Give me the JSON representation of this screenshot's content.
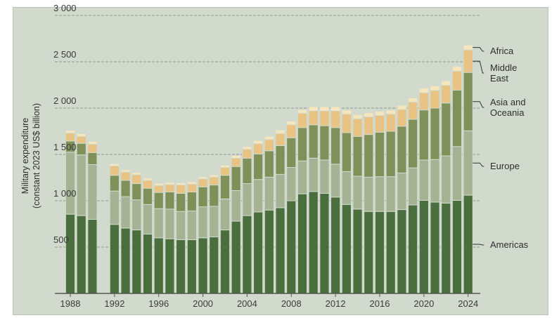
{
  "chart_data": {
    "type": "bar",
    "stacked": true,
    "ylabel_line1": "Military expenditure",
    "ylabel_line2": "(constant 2023 US$ billion)",
    "ylim": [
      0,
      3000
    ],
    "yticks": [
      500,
      1000,
      1500,
      2000,
      2500,
      3000
    ],
    "ytick_labels": [
      "500",
      "1 000",
      "1 500",
      "2 000",
      "2 500",
      "3 000"
    ],
    "xticks": [
      1988,
      1992,
      1996,
      2000,
      2004,
      2008,
      2012,
      2016,
      2020,
      2024
    ],
    "xtick_labels": [
      "1988",
      "1992",
      "1996",
      "2000",
      "2004",
      "2008",
      "2012",
      "2016",
      "2020",
      "2024"
    ],
    "grid": "horizontal dashed",
    "legend_placement": "right, labels beside final bar",
    "x": [
      1988,
      1989,
      1990,
      1992,
      1993,
      1994,
      1995,
      1996,
      1997,
      1998,
      1999,
      2000,
      2001,
      2002,
      2003,
      2004,
      2005,
      2006,
      2007,
      2008,
      2009,
      2010,
      2011,
      2012,
      2013,
      2014,
      2015,
      2016,
      2017,
      2018,
      2019,
      2020,
      2021,
      2022,
      2023,
      2024
    ],
    "series": [
      {
        "name": "Americas",
        "color": "#4a6e3e",
        "values": [
          855,
          840,
          800,
          745,
          705,
          685,
          640,
          600,
          590,
          580,
          580,
          600,
          610,
          685,
          780,
          840,
          880,
          900,
          925,
          1000,
          1075,
          1100,
          1080,
          1040,
          960,
          910,
          885,
          885,
          885,
          905,
          955,
          1005,
          985,
          975,
          1005,
          1060
        ]
      },
      {
        "name": "Europe",
        "color": "#a5b294",
        "values": [
          670,
          655,
          590,
          360,
          340,
          325,
          320,
          315,
          320,
          305,
          310,
          335,
          330,
          335,
          330,
          345,
          350,
          355,
          360,
          360,
          355,
          360,
          360,
          355,
          355,
          355,
          370,
          375,
          375,
          395,
          400,
          435,
          460,
          510,
          580,
          695
        ]
      },
      {
        "name": "Asia and Oceania",
        "color": "#7f9158",
        "values": [
          120,
          125,
          130,
          170,
          175,
          175,
          175,
          175,
          185,
          195,
          205,
          215,
          230,
          255,
          260,
          275,
          275,
          285,
          310,
          320,
          360,
          360,
          370,
          395,
          420,
          430,
          460,
          480,
          490,
          505,
          525,
          540,
          555,
          570,
          610,
          630
        ]
      },
      {
        "name": "Middle East",
        "color": "#e9c383",
        "values": [
          85,
          75,
          90,
          100,
          90,
          95,
          85,
          75,
          80,
          90,
          85,
          85,
          85,
          85,
          90,
          95,
          110,
          120,
          130,
          140,
          155,
          150,
          160,
          180,
          200,
          190,
          190,
          180,
          185,
          180,
          185,
          185,
          190,
          190,
          205,
          243
        ]
      },
      {
        "name": "Africa",
        "color": "#f6e6bd",
        "values": [
          30,
          30,
          30,
          25,
          25,
          25,
          25,
          25,
          25,
          25,
          25,
          25,
          25,
          25,
          30,
          30,
          35,
          35,
          40,
          40,
          40,
          45,
          45,
          45,
          45,
          45,
          45,
          45,
          45,
          45,
          45,
          50,
          50,
          50,
          50,
          52
        ]
      }
    ],
    "legend_labels": [
      {
        "series": "Africa",
        "lines": [
          "Africa"
        ]
      },
      {
        "series": "Middle East",
        "lines": [
          "Middle",
          "East"
        ]
      },
      {
        "series": "Asia and Oceania",
        "lines": [
          "Asia and",
          "Oceania"
        ]
      },
      {
        "series": "Europe",
        "lines": [
          "Europe"
        ]
      },
      {
        "series": "Americas",
        "lines": [
          "Americas"
        ]
      }
    ],
    "colors": {
      "background": "#d1dacd",
      "grid": "#8e988b",
      "axis": "#555555",
      "text": "#3a3a3a",
      "bar_separator": "#d1dacd"
    }
  }
}
